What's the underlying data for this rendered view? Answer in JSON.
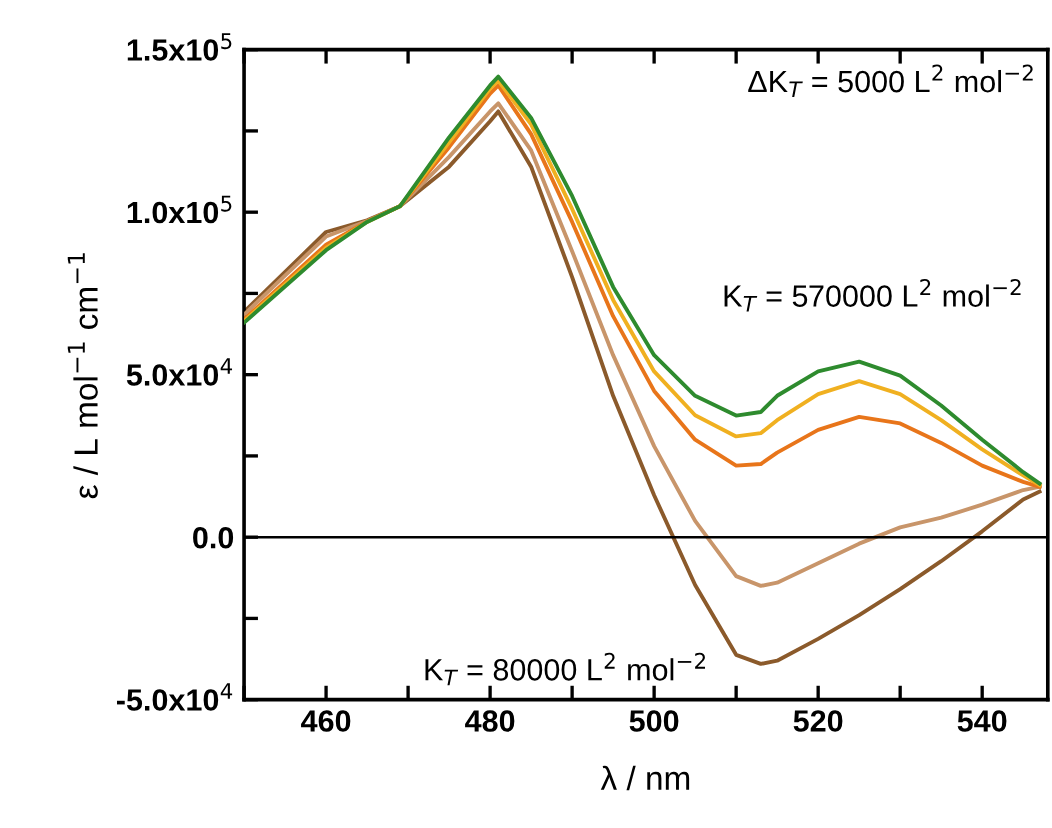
{
  "chart_data": {
    "type": "line",
    "xlabel": "λ / nm",
    "ylabel": "ε / L mol$^{−1}$ cm$^{−1}$",
    "x": [
      450,
      460,
      465,
      469,
      475,
      480,
      481,
      485,
      490,
      495,
      500,
      505,
      510,
      513,
      515,
      520,
      525,
      530,
      535,
      540,
      545,
      547
    ],
    "series": [
      {
        "color": "#8b5a2b",
        "values": [
          69300,
          93900,
          97500,
          101800,
          114000,
          128000,
          131000,
          114000,
          80000,
          43500,
          12900,
          -14700,
          -36200,
          -39000,
          -38000,
          -31300,
          -24000,
          -16000,
          -7400,
          1800,
          11600,
          14000
        ]
      },
      {
        "color": "#c8956a",
        "values": [
          68500,
          92500,
          97300,
          101800,
          117000,
          131000,
          133500,
          119000,
          88000,
          56000,
          28000,
          5000,
          -12000,
          -15000,
          -14000,
          -8000,
          -2000,
          3000,
          6000,
          10000,
          14500,
          15500
        ]
      },
      {
        "color": "#e8751a",
        "values": [
          67000,
          90000,
          97100,
          101800,
          120000,
          136500,
          139000,
          124000,
          97000,
          68000,
          45000,
          30000,
          22000,
          22500,
          26000,
          33000,
          37000,
          35000,
          29000,
          22000,
          17000,
          15500
        ]
      },
      {
        "color": "#f0b020",
        "values": [
          66500,
          89000,
          97000,
          101800,
          121500,
          138000,
          140500,
          127000,
          101000,
          73000,
          51000,
          37500,
          31000,
          32000,
          36000,
          44000,
          48000,
          44000,
          36000,
          27000,
          19000,
          16000
        ]
      },
      {
        "color": "#2e8b2e",
        "values": [
          66000,
          88300,
          97000,
          101800,
          123000,
          139000,
          141700,
          129000,
          105000,
          77000,
          56000,
          43500,
          37400,
          38500,
          43500,
          51000,
          54000,
          49700,
          40500,
          30000,
          20000,
          16500
        ]
      }
    ],
    "xlim": [
      450,
      548
    ],
    "xticks": [
      {
        "value": 450,
        "label": null
      },
      460,
      {
        "value": 470,
        "label": null
      },
      480,
      {
        "value": 490,
        "label": null
      },
      500,
      {
        "value": 510,
        "label": null
      },
      520,
      {
        "value": 530,
        "label": null
      },
      540
    ],
    "ylim": [
      -50000,
      150000
    ],
    "yticks": [
      {
        "value": -50000,
        "label": "-5.0x10$^{4}$"
      },
      {
        "value": -25000,
        "label": null
      },
      {
        "value": 0,
        "label": "0.0"
      },
      {
        "value": 25000,
        "label": null
      },
      {
        "value": 50000,
        "label": "5.0x10$^{4}$"
      },
      {
        "value": 75000,
        "label": null
      },
      {
        "value": 100000,
        "label": "1.0x10$^{5}$"
      },
      {
        "value": 125000,
        "label": null
      },
      {
        "value": 150000,
        "label": "1.5x10$^{5}$"
      }
    ],
    "ref_lines": [
      {
        "axis": "y",
        "value": 0,
        "color": "#000000"
      }
    ],
    "annotations": [
      "ΔK$_{T}$ = 5000 L$^{2}$ mol$^{−2}$",
      "K$_{T}$ = 570000 L$^{2}$ mol$^{−2}$",
      "K$_{T}$ = 80000 L$^{2}$ mol$^{−2}$"
    ],
    "grid": false,
    "legend": false,
    "marker": "none",
    "line_style": "solid"
  }
}
